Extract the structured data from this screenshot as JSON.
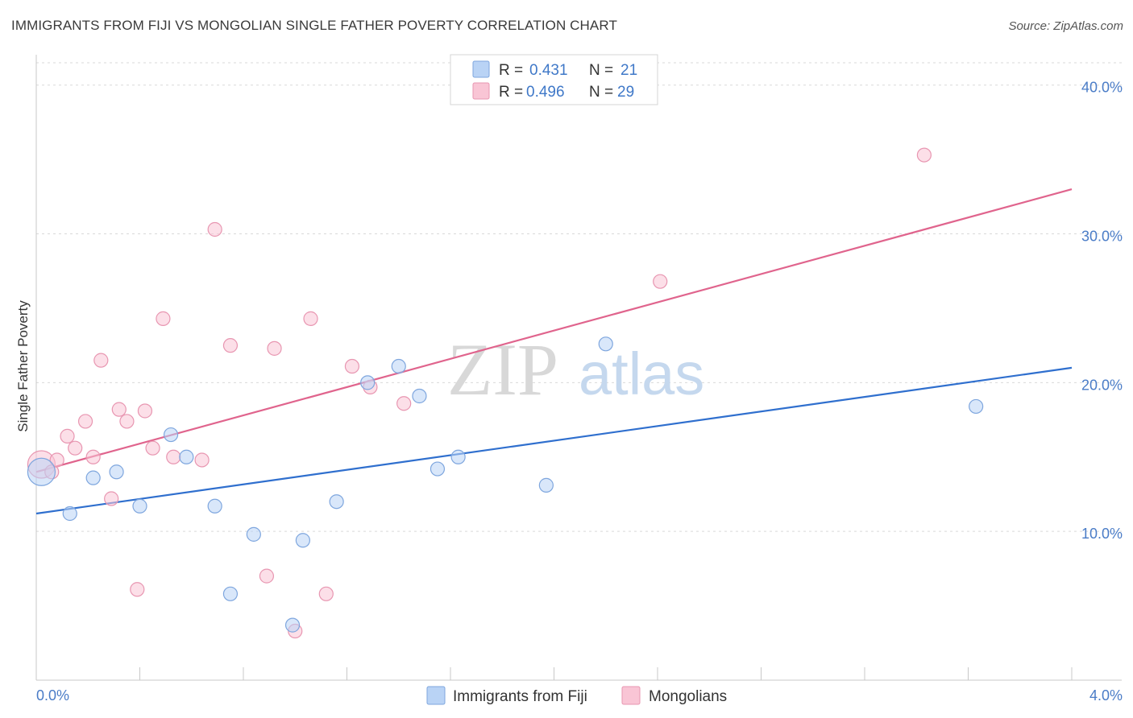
{
  "title": "IMMIGRANTS FROM FIJI VS MONGOLIAN SINGLE FATHER POVERTY CORRELATION CHART",
  "source": "Source: ZipAtlas.com",
  "watermark": {
    "zip": "ZIP",
    "atlas": "atlas"
  },
  "colors": {
    "fiji_fill": "#b9d3f5",
    "fiji_stroke": "#7ea6de",
    "fiji_line": "#2f6fce",
    "mong_fill": "#f9c5d5",
    "mong_stroke": "#e896b1",
    "mong_line": "#e0648d",
    "tick_text": "#4a7cc7",
    "grid": "#d9d9d9"
  },
  "legend": {
    "rows": [
      {
        "r_label": "R =",
        "r_value": "0.431",
        "n_label": "N =",
        "n_value": "21"
      },
      {
        "r_label": "R =",
        "r_value": "0.496",
        "n_label": "N =",
        "n_value": "29"
      }
    ]
  },
  "chart_data": {
    "type": "scatter",
    "title": "IMMIGRANTS FROM FIJI VS MONGOLIAN SINGLE FATHER POVERTY CORRELATION CHART",
    "xlabel": "",
    "ylabel": "Single Father Poverty",
    "xlim": [
      0,
      4.0
    ],
    "ylim": [
      0,
      41.5
    ],
    "x_tick_labels": [
      "0.0%",
      "4.0%"
    ],
    "y_ticks": [
      10,
      20,
      30,
      40
    ],
    "y_tick_labels": [
      "10.0%",
      "20.0%",
      "30.0%",
      "40.0%"
    ],
    "grid": "horizontal dashed",
    "legend_position": "top-center",
    "series": [
      {
        "name": "Immigrants from Fiji",
        "R": 0.431,
        "N": 21,
        "trend": {
          "x": [
            0.0,
            4.0
          ],
          "y": [
            11.2,
            21.0
          ]
        },
        "points": [
          {
            "x": 0.02,
            "y": 14.0,
            "big": true
          },
          {
            "x": 0.13,
            "y": 11.2
          },
          {
            "x": 0.22,
            "y": 13.6
          },
          {
            "x": 0.31,
            "y": 14.0
          },
          {
            "x": 0.4,
            "y": 11.7
          },
          {
            "x": 0.52,
            "y": 16.5
          },
          {
            "x": 0.58,
            "y": 15.0
          },
          {
            "x": 0.69,
            "y": 11.7
          },
          {
            "x": 0.75,
            "y": 5.8
          },
          {
            "x": 0.84,
            "y": 9.8
          },
          {
            "x": 0.99,
            "y": 3.7
          },
          {
            "x": 1.03,
            "y": 9.4
          },
          {
            "x": 1.16,
            "y": 12.0
          },
          {
            "x": 1.28,
            "y": 20.0
          },
          {
            "x": 1.4,
            "y": 21.1
          },
          {
            "x": 1.48,
            "y": 19.1
          },
          {
            "x": 1.55,
            "y": 14.2
          },
          {
            "x": 1.63,
            "y": 15.0
          },
          {
            "x": 1.97,
            "y": 13.1
          },
          {
            "x": 2.2,
            "y": 22.6
          },
          {
            "x": 3.63,
            "y": 18.4
          }
        ]
      },
      {
        "name": "Mongolians",
        "R": 0.496,
        "N": 29,
        "trend": {
          "x": [
            0.0,
            4.0
          ],
          "y": [
            14.0,
            33.0
          ]
        },
        "points": [
          {
            "x": 0.02,
            "y": 14.5,
            "big": true
          },
          {
            "x": 0.06,
            "y": 14.0
          },
          {
            "x": 0.08,
            "y": 14.8
          },
          {
            "x": 0.12,
            "y": 16.4
          },
          {
            "x": 0.15,
            "y": 15.6
          },
          {
            "x": 0.19,
            "y": 17.4
          },
          {
            "x": 0.22,
            "y": 15.0
          },
          {
            "x": 0.25,
            "y": 21.5
          },
          {
            "x": 0.29,
            "y": 12.2
          },
          {
            "x": 0.32,
            "y": 18.2
          },
          {
            "x": 0.35,
            "y": 17.4
          },
          {
            "x": 0.39,
            "y": 6.1
          },
          {
            "x": 0.42,
            "y": 18.1
          },
          {
            "x": 0.45,
            "y": 15.6
          },
          {
            "x": 0.49,
            "y": 24.3
          },
          {
            "x": 0.53,
            "y": 15.0
          },
          {
            "x": 0.64,
            "y": 14.8
          },
          {
            "x": 0.69,
            "y": 30.3
          },
          {
            "x": 0.75,
            "y": 22.5
          },
          {
            "x": 0.89,
            "y": 7.0
          },
          {
            "x": 0.92,
            "y": 22.3
          },
          {
            "x": 1.0,
            "y": 3.3
          },
          {
            "x": 1.06,
            "y": 24.3
          },
          {
            "x": 1.12,
            "y": 5.8
          },
          {
            "x": 1.22,
            "y": 21.1
          },
          {
            "x": 1.29,
            "y": 19.7
          },
          {
            "x": 1.42,
            "y": 18.6
          },
          {
            "x": 2.41,
            "y": 26.8
          },
          {
            "x": 3.43,
            "y": 35.3
          }
        ]
      }
    ]
  }
}
